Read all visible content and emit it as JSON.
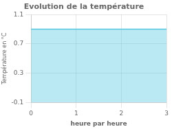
{
  "chart_data": {
    "type": "area",
    "title": "Evolution de la température",
    "xlabel": "heure par heure",
    "ylabel": "Température en °C",
    "x": [
      0,
      3
    ],
    "values": [
      0.9,
      0.9
    ],
    "color": "#55c8e0",
    "xlim": [
      0,
      3
    ],
    "ylim": [
      -0.1,
      1.1
    ],
    "xticks": [
      0,
      1,
      2,
      3
    ],
    "yticks": [
      -0.1,
      0.3,
      0.7,
      1.1
    ],
    "grid": true
  }
}
